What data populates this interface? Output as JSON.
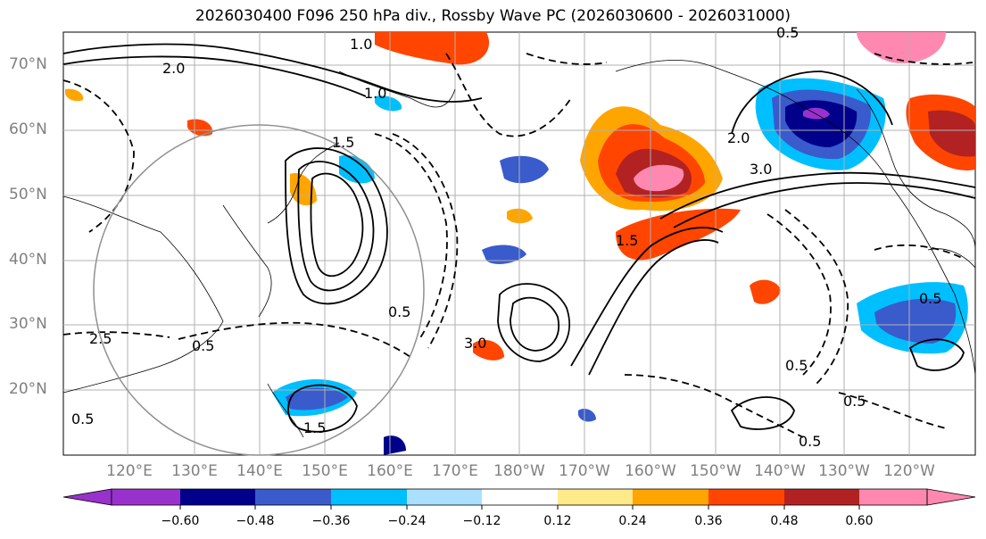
{
  "title": "2026030400 F096 250 hPa div., Rossby Wave PC (2026030600 - 2026031000)",
  "lat_labels": [
    "70°N",
    "60°N",
    "50°N",
    "40°N",
    "30°N",
    "20°N"
  ],
  "lon_labels": [
    "120°E",
    "130°E",
    "140°E",
    "150°E",
    "160°E",
    "170°E",
    "180°W",
    "170°W",
    "160°W",
    "150°W",
    "140°W",
    "130°W",
    "120°W"
  ],
  "colorbar": {
    "ticks": [
      "−0.60",
      "−0.48",
      "−0.36",
      "−0.24",
      "−0.12",
      "0.12",
      "0.24",
      "0.36",
      "0.48",
      "0.60"
    ],
    "colors": [
      "#9932cc",
      "#00008b",
      "#3a5bcc",
      "#00bfff",
      "#aadfff",
      "#ffffff",
      "#ffea8a",
      "#ffa500",
      "#ff4500",
      "#b22222",
      "#ff88b0"
    ]
  },
  "contour_labels": [
    "0.5",
    "1.0",
    "1.5",
    "2.0",
    "2.5",
    "3.0"
  ],
  "colors": {
    "grid": "#b0b0b0",
    "coast": "#000000",
    "label": "#808080"
  }
}
